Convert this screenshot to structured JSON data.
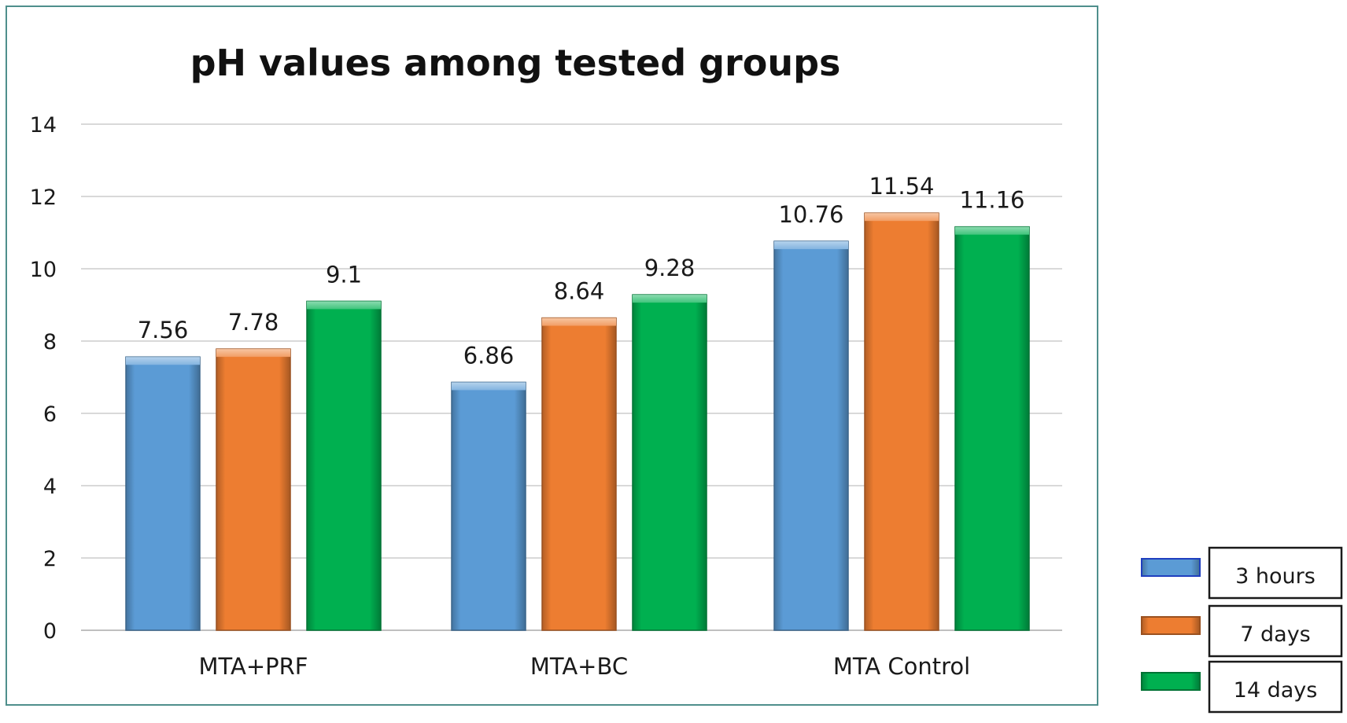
{
  "chart_data": {
    "type": "bar",
    "title": "pH values among tested groups",
    "xlabel": "",
    "ylabel": "",
    "categories": [
      "MTA+PRF",
      "MTA+BC",
      "MTA Control"
    ],
    "series": [
      {
        "name": "3 hours",
        "values": [
          7.56,
          6.86,
          10.76
        ],
        "labels": [
          "7.56",
          "6.86",
          "10.76"
        ],
        "color": "#5b9bd5"
      },
      {
        "name": "7 days",
        "values": [
          7.78,
          8.64,
          11.54
        ],
        "labels": [
          "7.78",
          "8.64",
          "11.54"
        ],
        "color": "#ed7d31"
      },
      {
        "name": "14 days",
        "values": [
          9.1,
          9.28,
          11.16
        ],
        "labels": [
          "9.1",
          "9.28",
          "11.16"
        ],
        "color": "#00b050"
      }
    ],
    "ylim": [
      0,
      14
    ],
    "yticks": [
      "0",
      "2",
      "4",
      "6",
      "8",
      "10",
      "12",
      "14"
    ],
    "grid": true,
    "legend_position": "bottom-right, outside plot"
  }
}
